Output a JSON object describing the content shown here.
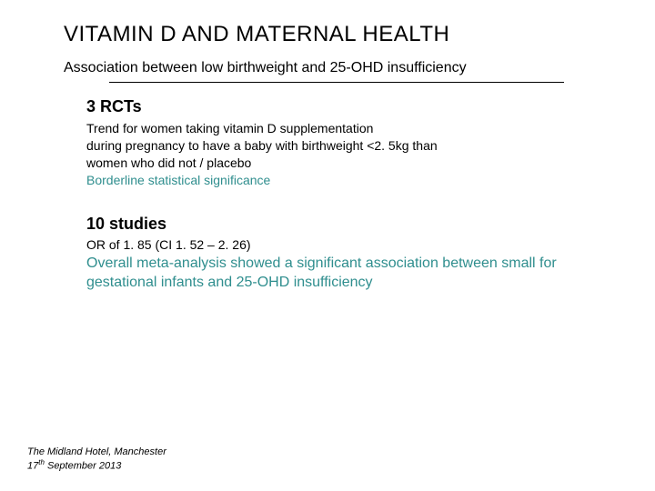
{
  "title": "VITAMIN D AND MATERNAL HEALTH",
  "subtitle": "Association between low birthweight and 25-OHD insufficiency",
  "section1": {
    "heading": "3 RCTs",
    "line1": "Trend for women taking vitamin D supplementation",
    "line2": "during pregnancy to have a baby with birthweight <2. 5kg than",
    "line3": "women who did not / placebo",
    "line4": "Borderline statistical significance"
  },
  "section2": {
    "heading": "10 studies",
    "stat": "OR of 1. 85 (CI 1. 52 – 2. 26)",
    "conclusion": "Overall meta-analysis showed a significant association between small for gestational infants and 25-OHD insufficiency"
  },
  "footer": {
    "venue": "The Midland Hotel, Manchester",
    "date_pre": "17",
    "date_sup": "th",
    "date_post": " September 2013"
  },
  "colors": {
    "teal": "#2f8e8e",
    "text": "#000000",
    "background": "#ffffff"
  }
}
